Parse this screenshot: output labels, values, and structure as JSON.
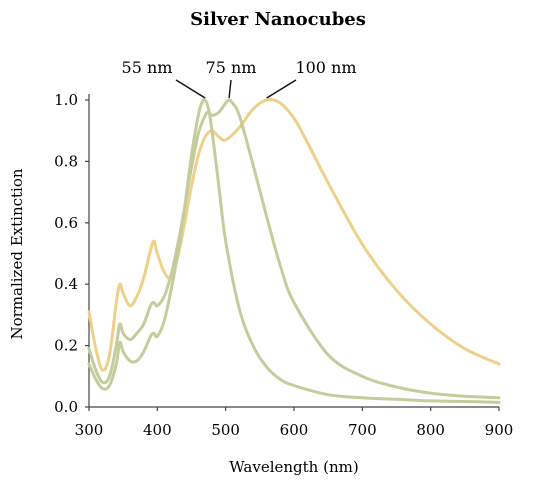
{
  "chart_data": {
    "type": "line",
    "title": "Silver Nanocubes",
    "xlabel": "Wavelength (nm)",
    "ylabel": "Normalized Extinction",
    "xlim": [
      300,
      900
    ],
    "ylim": [
      0,
      1.0
    ],
    "x_ticks": [
      300,
      400,
      500,
      600,
      700,
      800,
      900
    ],
    "y_ticks": [
      "0.0",
      "0.2",
      "0.4",
      "0.6",
      "0.8",
      "1.0"
    ],
    "grid": false,
    "legend": "none",
    "series": [
      {
        "name": "55 nm",
        "color": "#c5cc9c",
        "x": [
          300,
          310,
          320,
          330,
          340,
          345,
          350,
          360,
          370,
          380,
          390,
          395,
          400,
          410,
          420,
          430,
          440,
          450,
          460,
          465,
          470,
          475,
          480,
          490,
          500,
          520,
          540,
          560,
          580,
          600,
          650,
          700,
          750,
          800,
          850,
          900
        ],
        "y": [
          0.14,
          0.09,
          0.06,
          0.07,
          0.14,
          0.21,
          0.18,
          0.15,
          0.15,
          0.18,
          0.23,
          0.24,
          0.23,
          0.28,
          0.38,
          0.5,
          0.65,
          0.82,
          0.95,
          0.99,
          1.0,
          0.97,
          0.9,
          0.72,
          0.54,
          0.32,
          0.2,
          0.13,
          0.09,
          0.07,
          0.04,
          0.03,
          0.025,
          0.02,
          0.018,
          0.015
        ]
      },
      {
        "name": "75 nm",
        "color": "#c5cc9c",
        "x": [
          300,
          310,
          320,
          330,
          340,
          345,
          350,
          360,
          370,
          380,
          390,
          395,
          400,
          410,
          420,
          430,
          440,
          450,
          460,
          470,
          475,
          480,
          490,
          500,
          505,
          510,
          520,
          540,
          560,
          580,
          600,
          650,
          700,
          750,
          800,
          850,
          900
        ],
        "y": [
          0.19,
          0.12,
          0.08,
          0.1,
          0.2,
          0.27,
          0.24,
          0.22,
          0.24,
          0.27,
          0.33,
          0.34,
          0.33,
          0.36,
          0.43,
          0.53,
          0.65,
          0.78,
          0.89,
          0.95,
          0.96,
          0.95,
          0.96,
          0.99,
          1.0,
          0.99,
          0.95,
          0.79,
          0.62,
          0.46,
          0.34,
          0.17,
          0.1,
          0.065,
          0.045,
          0.035,
          0.03
        ]
      },
      {
        "name": "100 nm",
        "color": "#edd08a",
        "x": [
          300,
          310,
          320,
          330,
          340,
          345,
          350,
          360,
          370,
          380,
          390,
          395,
          400,
          410,
          420,
          430,
          440,
          450,
          460,
          470,
          480,
          490,
          500,
          520,
          540,
          560,
          580,
          600,
          620,
          650,
          700,
          750,
          800,
          850,
          900
        ],
        "y": [
          0.31,
          0.19,
          0.12,
          0.17,
          0.34,
          0.4,
          0.37,
          0.33,
          0.36,
          0.42,
          0.51,
          0.54,
          0.5,
          0.44,
          0.42,
          0.49,
          0.6,
          0.72,
          0.82,
          0.88,
          0.9,
          0.88,
          0.87,
          0.91,
          0.97,
          1.0,
          0.99,
          0.94,
          0.86,
          0.73,
          0.53,
          0.38,
          0.27,
          0.19,
          0.14
        ]
      }
    ]
  }
}
